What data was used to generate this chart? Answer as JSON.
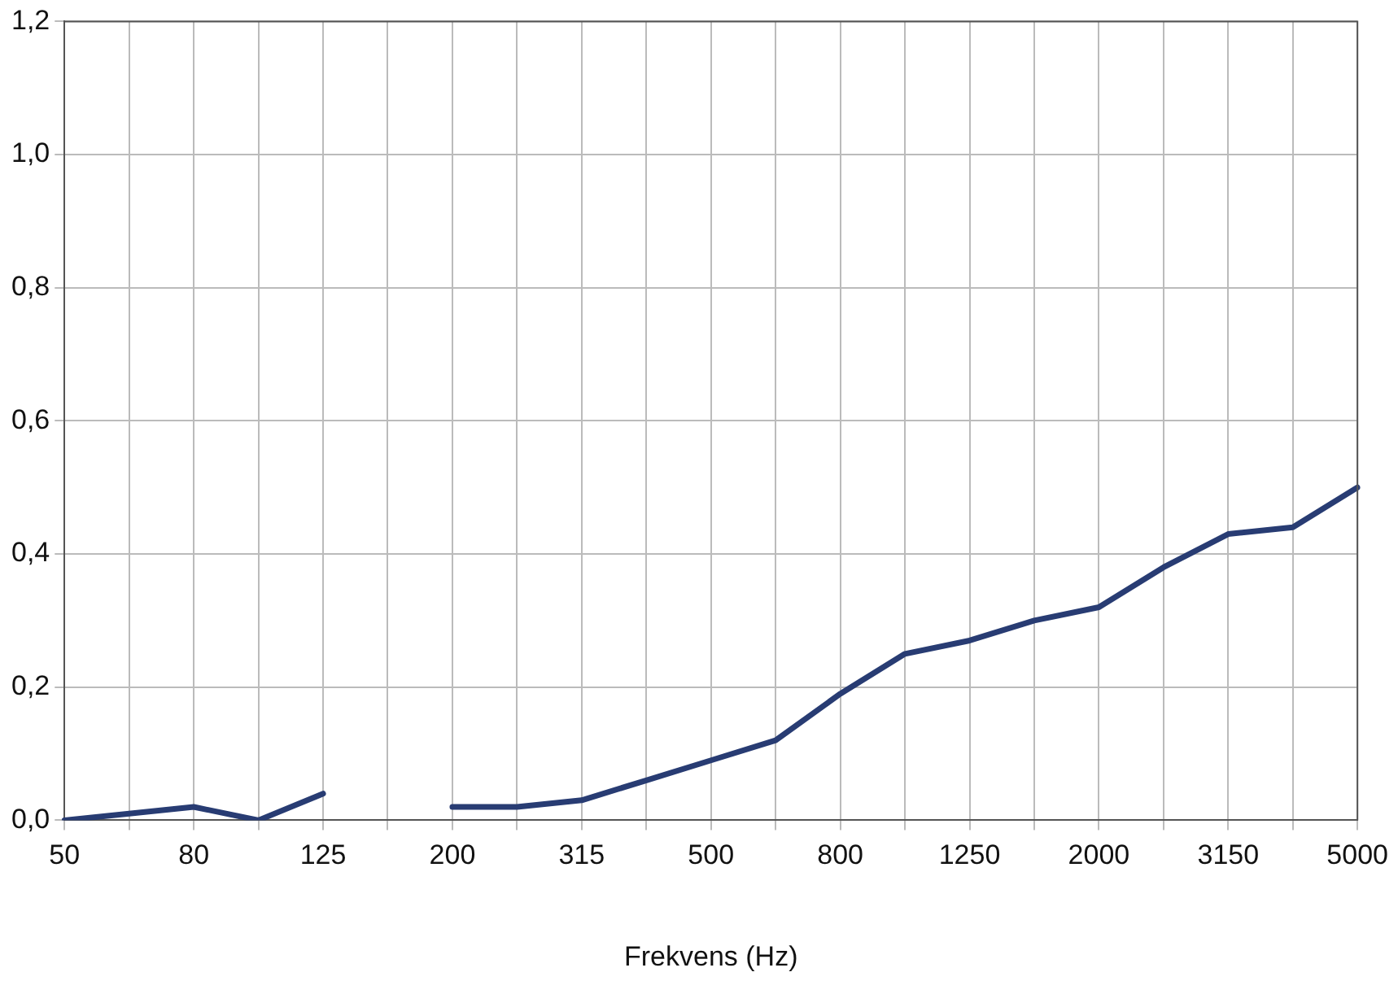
{
  "chart_data": {
    "type": "line",
    "xlabel": "Frekvens (Hz)",
    "categories": [
      "50",
      null,
      "80",
      null,
      "125",
      null,
      "200",
      null,
      "315",
      null,
      "500",
      null,
      "800",
      null,
      "1250",
      null,
      "2000",
      null,
      "3150",
      null,
      "5000"
    ],
    "series": [
      {
        "color": "#283c73",
        "values": [
          0,
          0.01,
          0.02,
          0,
          0.04,
          null,
          0.02,
          0.02,
          0.03,
          0.06,
          0.09,
          0.12,
          0.19,
          0.25,
          0.27,
          0.3,
          0.32,
          0.38,
          0.43,
          0.44,
          0.5
        ]
      }
    ],
    "ylim": [
      0,
      1.2
    ],
    "yticks": [
      {
        "value": 0,
        "label": "0,0"
      },
      {
        "value": 0.2,
        "label": "0,2"
      },
      {
        "value": 0.4,
        "label": "0,4"
      },
      {
        "value": 0.6,
        "label": "0,6"
      },
      {
        "value": 0.8,
        "label": "0,8"
      },
      {
        "value": 1.0,
        "label": "1,0"
      },
      {
        "value": 1.2,
        "label": "1,2"
      }
    ],
    "grid": true,
    "legend": false,
    "marker": "none",
    "line_style": "solid"
  }
}
